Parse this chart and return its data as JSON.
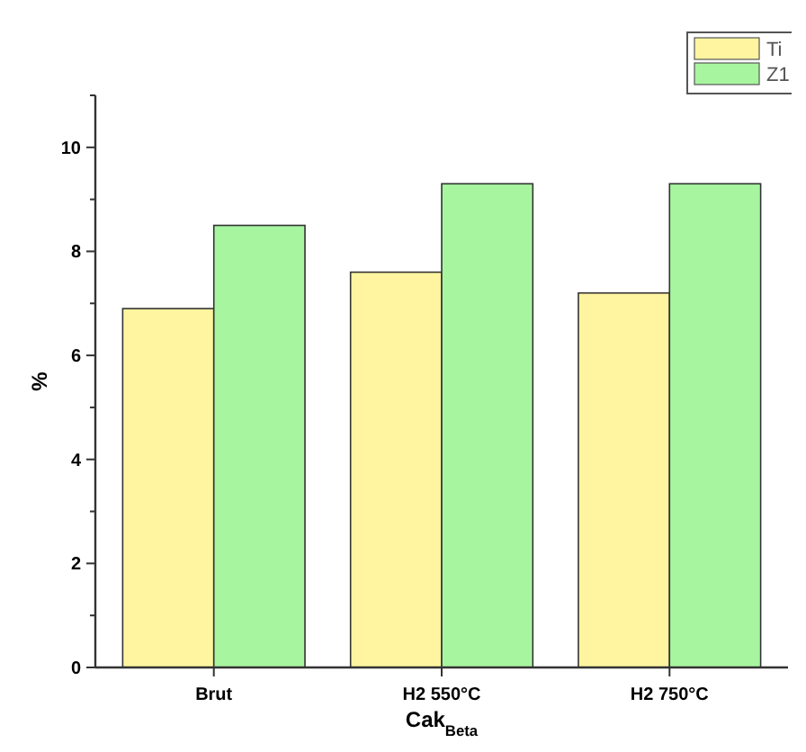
{
  "chart_data": {
    "type": "bar",
    "xlabel": "Cak$_{Beta}$",
    "ylabel": "%",
    "categories": [
      "Brut",
      "H2 550°C",
      "H2 750°C"
    ],
    "series": [
      {
        "name": "Ti",
        "color": "#fff5a0",
        "values": [
          6.9,
          7.6,
          7.2
        ]
      },
      {
        "name": "Z1",
        "color": "#a8f5a0",
        "values": [
          8.5,
          9.3,
          9.3
        ]
      }
    ],
    "ylim": [
      0,
      11
    ],
    "yticks": [
      0,
      {
        "value": 1,
        "label": null
      },
      2,
      {
        "value": 3,
        "label": null
      },
      4,
      {
        "value": 5,
        "label": null
      },
      6,
      {
        "value": 7,
        "label": null
      },
      8,
      {
        "value": 9,
        "label": null
      },
      10,
      {
        "value": 11,
        "label": null
      }
    ],
    "grid": false,
    "legend": "top right"
  }
}
